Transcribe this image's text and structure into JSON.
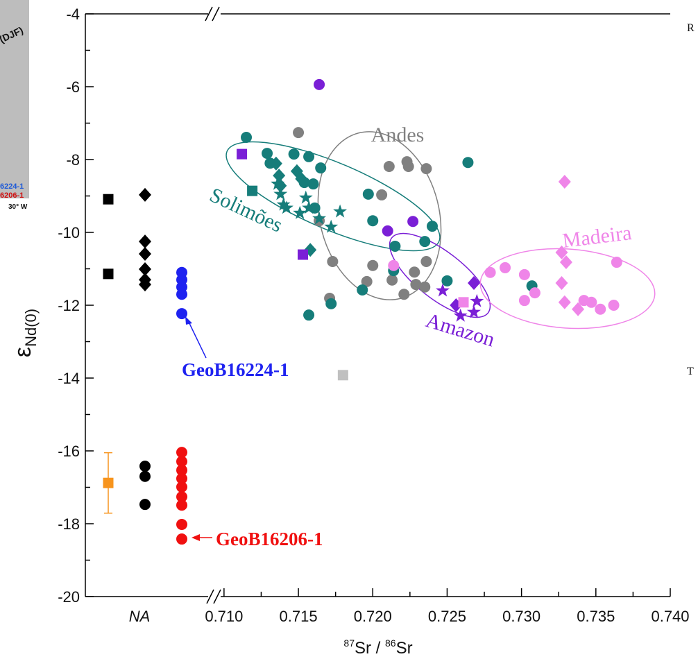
{
  "chart_data": {
    "type": "scatter",
    "ylabel": [
      "ε",
      "Nd(0)"
    ],
    "xlabel": [
      "87",
      "Sr / ",
      "86",
      "Sr"
    ],
    "ylim": [
      -20,
      -4
    ],
    "yticks": [
      -4,
      -6,
      -8,
      -10,
      -12,
      -14,
      -16,
      -18,
      -20
    ],
    "yminorticks": [
      -5,
      -7,
      -9,
      -11,
      -13,
      -15,
      -17,
      -19
    ],
    "xlim": [
      0.7094,
      0.74
    ],
    "xticks": [
      {
        "value": 0.71,
        "label": "0.710"
      },
      0.715,
      {
        "value": 0.72,
        "label": "0.720"
      },
      0.725,
      {
        "value": 0.73,
        "label": "0.730"
      },
      0.735,
      {
        "value": 0.74,
        "label": "0.740"
      }
    ],
    "xminorticks": [
      0.7125,
      0.7175,
      0.7225,
      0.7275,
      0.7325,
      0.7375
    ],
    "categories": [
      null,
      "NA",
      null
    ],
    "category_series": [
      {
        "color": "#000000",
        "marker": "square",
        "values": [
          [
            -9.09,
            -11.14
          ],
          null,
          null
        ]
      },
      {
        "color": "#f7941d",
        "marker": "square",
        "values": [
          [
            -16.88
          ],
          null,
          null
        ],
        "errors": [
          [
            0.83
          ],
          null,
          null
        ]
      },
      {
        "color": "#000000",
        "marker": "diamond",
        "values": [
          null,
          [
            -8.97,
            -10.25,
            -10.59,
            -11.01,
            -11.3,
            -11.43
          ],
          null
        ]
      },
      {
        "color": "#000000",
        "marker": "circle",
        "values": [
          null,
          [
            -16.42,
            -16.7,
            -17.47
          ],
          null
        ]
      },
      {
        "color": "#1e22f0",
        "marker": "circle",
        "values": [
          null,
          null,
          [
            -11.1,
            -11.3,
            -11.5,
            -11.7,
            -12.23
          ]
        ]
      },
      {
        "color": "#f01010",
        "marker": "circle",
        "values": [
          null,
          null,
          [
            -16.04,
            -16.29,
            -16.53,
            -16.76,
            -16.99,
            -17.26,
            -17.49,
            -18.02,
            -18.42
          ]
        ]
      }
    ],
    "series": [
      {
        "color": "#808080",
        "marker": "circle",
        "x": [
          0.715,
          0.7164,
          0.7173,
          0.7171,
          0.7206,
          0.7211,
          0.7223,
          0.7224,
          0.7236,
          0.72,
          0.7196,
          0.7213,
          0.7221,
          0.7228,
          0.7229,
          0.7235,
          0.7236
        ],
        "values": [
          -7.26,
          -9.68,
          -10.8,
          -11.81,
          -8.97,
          -8.19,
          -8.06,
          -8.19,
          -8.25,
          -10.91,
          -11.35,
          -11.31,
          -11.7,
          -11.09,
          -11.43,
          -11.5,
          -10.8
        ]
      },
      {
        "color": "#167d7a",
        "marker": "circle",
        "x": [
          0.7115,
          0.7129,
          0.7131,
          0.7147,
          0.7157,
          0.7165,
          0.7154,
          0.716,
          0.7161,
          0.7197,
          0.72,
          0.7214,
          0.7215,
          0.7235,
          0.724,
          0.725,
          0.7264,
          0.7193,
          0.7172,
          0.7157,
          0.7307
        ],
        "values": [
          -7.39,
          -7.83,
          -8.1,
          -7.85,
          -7.92,
          -8.23,
          -8.63,
          -8.67,
          -9.33,
          -8.95,
          -9.68,
          -11.05,
          -10.38,
          -10.25,
          -9.83,
          -11.33,
          -8.08,
          -11.58,
          -11.96,
          -12.27,
          -11.47
        ]
      },
      {
        "color": "#167d7a",
        "marker": "square",
        "x": [
          0.7119
        ],
        "values": [
          -8.86
        ]
      },
      {
        "color": "#167d7a",
        "marker": "diamond",
        "x": [
          0.7135,
          0.7137,
          0.7149,
          0.7152,
          0.7158,
          0.7138
        ],
        "values": [
          -8.11,
          -8.44,
          -8.32,
          -8.53,
          -10.48,
          -8.72
        ]
      },
      {
        "color": "#167d7a",
        "marker": "star",
        "x": [
          0.7136,
          0.7138,
          0.714,
          0.7142,
          0.7155,
          0.7157,
          0.7164,
          0.7172,
          0.7178,
          0.7151
        ],
        "values": [
          -8.67,
          -8.95,
          -9.24,
          -9.33,
          -9.05,
          -9.33,
          -9.62,
          -9.85,
          -9.43,
          -9.47
        ]
      },
      {
        "color": "#7a1fd6",
        "marker": "circle",
        "x": [
          0.7164,
          0.721,
          0.7227
        ],
        "values": [
          -5.94,
          -9.96,
          -9.7
        ]
      },
      {
        "color": "#7a1fd6",
        "marker": "square",
        "x": [
          0.7112,
          0.7153
        ],
        "values": [
          -7.85,
          -10.61
        ]
      },
      {
        "color": "#7a1fd6",
        "marker": "diamond",
        "x": [
          0.7268,
          0.7256
        ],
        "values": [
          -11.39,
          -12.0
        ]
      },
      {
        "color": "#7a1fd6",
        "marker": "star",
        "x": [
          0.7247,
          0.7259,
          0.7268,
          0.727
        ],
        "values": [
          -11.6,
          -12.29,
          -12.19,
          -11.89
        ]
      },
      {
        "color": "#ef85e8",
        "marker": "circle",
        "x": [
          0.7279,
          0.7289,
          0.7302,
          0.7302,
          0.7309,
          0.7342,
          0.7347,
          0.7353,
          0.7362,
          0.7364,
          0.7214
        ],
        "values": [
          -11.1,
          -10.97,
          -11.16,
          -11.87,
          -11.66,
          -11.87,
          -11.92,
          -12.11,
          -12.0,
          -10.82,
          -10.91
        ]
      },
      {
        "color": "#ef85e8",
        "marker": "diamond",
        "x": [
          0.7329,
          0.7327,
          0.733,
          0.7327,
          0.7329,
          0.7338
        ],
        "values": [
          -8.61,
          -10.55,
          -10.82,
          -11.39,
          -11.92,
          -12.11
        ]
      },
      {
        "color": "#ef85e8",
        "marker": "square",
        "x": [
          0.7261
        ],
        "values": [
          -11.92
        ]
      },
      {
        "color": "#c0c0c0",
        "marker": "square",
        "x": [
          0.718
        ],
        "values": [
          -13.92
        ]
      }
    ],
    "annotations": [
      "Andes",
      "Solimões",
      "Amazon",
      "Madeira",
      "GeoB16224-1",
      "GeoB16206-1"
    ],
    "fragments": [
      "(DJF)",
      "6224-1",
      "6206-1",
      "30° W",
      "R",
      "T"
    ]
  }
}
